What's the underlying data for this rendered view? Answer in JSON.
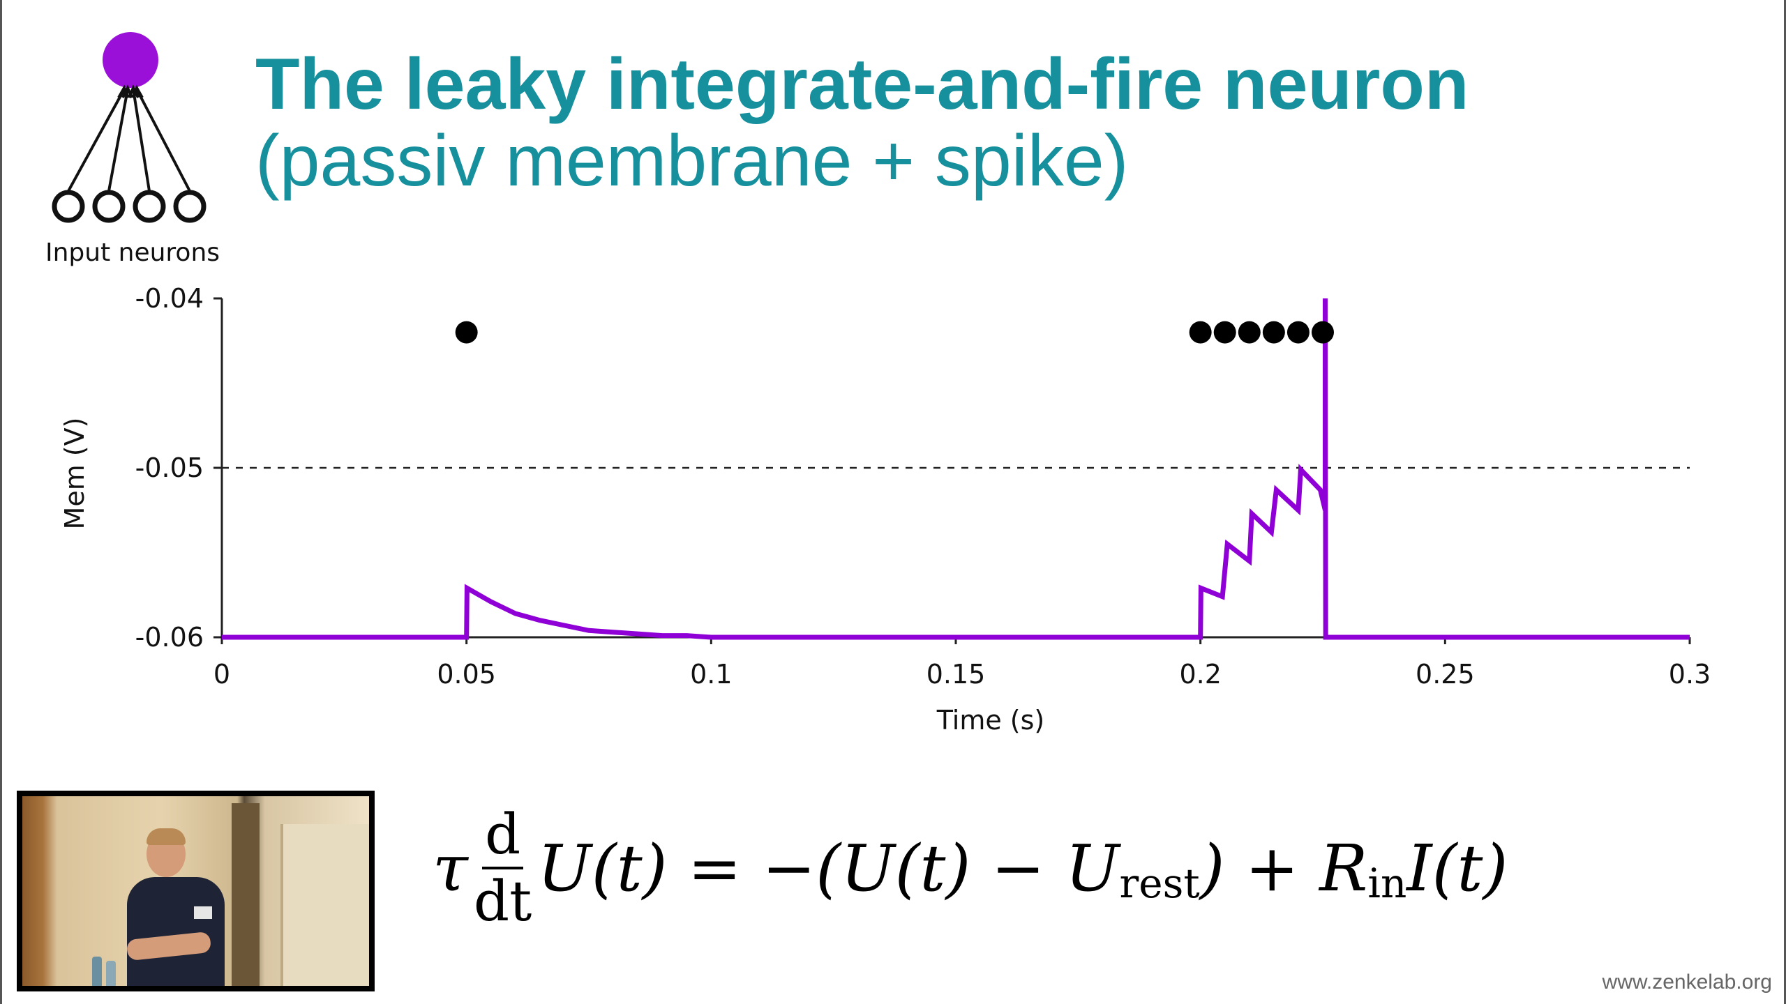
{
  "slide": {
    "title": "The leaky integrate-and-fire neuron",
    "subtitle": "(passiv membrane + spike)",
    "diagram_caption": "Input neurons",
    "watermark": "www.zenkelab.org"
  },
  "equation": {
    "tau": "τ",
    "d_num": "d",
    "d_den": "dt",
    "lhs": "U(t) = −(U(t) − U",
    "rest_sub": "rest",
    "mid": ") + R",
    "in_sub": "in",
    "rhs": "I(t)"
  },
  "colors": {
    "title": "#15909c",
    "trace": "#8f00d6",
    "neuron": "#9a10d8",
    "spike_dots": "#000000"
  },
  "chart_data": {
    "type": "line",
    "title": "",
    "xlabel": "Time (s)",
    "ylabel": "Mem (V)",
    "xlim": [
      0,
      0.3
    ],
    "ylim": [
      -0.06,
      -0.04
    ],
    "xticks": [
      0,
      0.05,
      0.1,
      0.15,
      0.2,
      0.25,
      0.3
    ],
    "xtick_labels": [
      "0",
      "0.05",
      "0.1",
      "0.15",
      "0.2",
      "0.25",
      "0.3"
    ],
    "yticks": [
      -0.06,
      -0.05,
      -0.04
    ],
    "ytick_labels": [
      "-0.06",
      "-0.05",
      "-0.04"
    ],
    "threshold": -0.05,
    "threshold_style": "dashed",
    "series": [
      {
        "x": [
          0,
          0.05,
          0.0501,
          0.055,
          0.06,
          0.065,
          0.07,
          0.075,
          0.08,
          0.085,
          0.09,
          0.095,
          0.1,
          0.11,
          0.12,
          0.13,
          0.14,
          0.15,
          0.2,
          0.2001,
          0.2045,
          0.2055,
          0.21,
          0.2105,
          0.2145,
          0.2155,
          0.22,
          0.2205,
          0.2245,
          0.2255,
          0.2255,
          0.2256,
          0.3
        ],
        "y": [
          -0.06,
          -0.06,
          -0.0571,
          -0.0579,
          -0.0586,
          -0.059,
          -0.0593,
          -0.0596,
          -0.0597,
          -0.0598,
          -0.0599,
          -0.0599,
          -0.06,
          -0.06,
          -0.06,
          -0.06,
          -0.06,
          -0.06,
          -0.06,
          -0.0571,
          -0.0576,
          -0.0545,
          -0.0555,
          -0.0527,
          -0.0538,
          -0.0513,
          -0.0525,
          -0.0501,
          -0.0513,
          -0.0525,
          -0.04,
          -0.06,
          -0.06
        ]
      }
    ],
    "input_spike_times": [
      0.05,
      0.2,
      0.205,
      0.21,
      0.215,
      0.22,
      0.225
    ],
    "grid": false,
    "legend": "none"
  }
}
